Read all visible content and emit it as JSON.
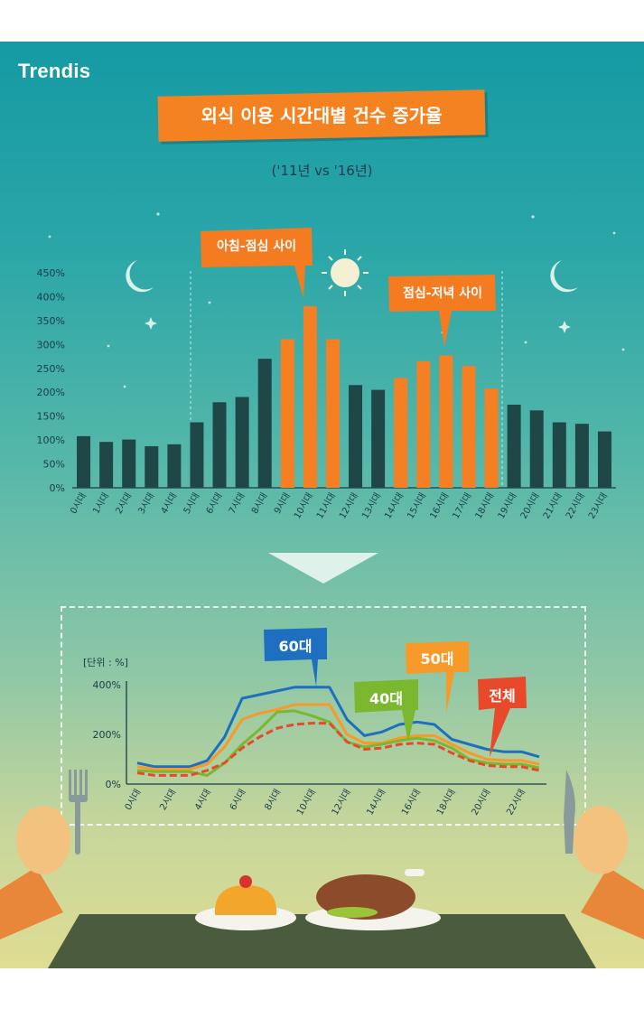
{
  "logo": "Trendis",
  "title": "외식 이용 시간대별 건수 증가율",
  "subtitle": "('11년 vs '16년)",
  "callouts": {
    "morning_lunch": "아침-점심 사이",
    "lunch_dinner": "점심-저녁 사이",
    "age60": "60대",
    "age50": "50대",
    "age40": "40대",
    "total": "전체"
  },
  "colors": {
    "bar_default": "#1f4747",
    "bar_highlight": "#f57f23",
    "callout_orange": "#f47b20",
    "callout_blue": "#1f6fc0",
    "callout_green": "#7bb72f",
    "callout_red": "#e8492b",
    "line_60": "#1f6fc0",
    "line_50": "#f79a2a",
    "line_40": "#7bb72f",
    "line_total": "#e8492b"
  },
  "chart_data": [
    {
      "type": "bar",
      "title": "",
      "ylim": [
        0,
        450
      ],
      "yticks": [
        "0%",
        "50%",
        "100%",
        "150%",
        "200%",
        "250%",
        "300%",
        "350%",
        "400%",
        "450%"
      ],
      "categories": [
        "0시대",
        "1시대",
        "2시대",
        "3시대",
        "4시대",
        "5시대",
        "6시대",
        "7시대",
        "8시대",
        "9시대",
        "10시대",
        "11시대",
        "12시대",
        "13시대",
        "14시대",
        "15시대",
        "16시대",
        "17시대",
        "18시대",
        "19시대",
        "20시대",
        "21시대",
        "22시대",
        "23시대"
      ],
      "values": [
        108,
        96,
        101,
        87,
        91,
        137,
        179,
        190,
        270,
        311,
        380,
        311,
        215,
        205,
        230,
        265,
        277,
        255,
        208,
        174,
        162,
        137,
        134,
        118
      ],
      "highlighted": [
        9,
        10,
        11,
        14,
        15,
        16,
        17,
        18
      ],
      "grid": false
    },
    {
      "type": "line",
      "unit_label": "[단위 : %]",
      "ylim": [
        0,
        400
      ],
      "yticks": [
        "0%",
        "200%",
        "400%"
      ],
      "x": [
        "0시대",
        "1시대",
        "2시대",
        "3시대",
        "4시대",
        "5시대",
        "6시대",
        "7시대",
        "8시대",
        "9시대",
        "10시대",
        "11시대",
        "12시대",
        "13시대",
        "14시대",
        "15시대",
        "16시대",
        "17시대",
        "18시대",
        "19시대",
        "20시대",
        "21시대",
        "22시대",
        "23시대"
      ],
      "x_tick_labels": [
        "0시대",
        "2시대",
        "4시대",
        "6시대",
        "8시대",
        "10시대",
        "12시대",
        "14시대",
        "16시대",
        "18시대",
        "20시대",
        "22시대"
      ],
      "series": [
        {
          "name": "60대",
          "values": [
            85,
            70,
            70,
            70,
            95,
            190,
            345,
            360,
            375,
            390,
            390,
            390,
            260,
            195,
            210,
            240,
            250,
            240,
            180,
            160,
            140,
            130,
            130,
            110
          ]
        },
        {
          "name": "50대",
          "values": [
            70,
            60,
            60,
            60,
            80,
            150,
            260,
            285,
            300,
            320,
            320,
            320,
            200,
            165,
            165,
            185,
            195,
            195,
            160,
            125,
            100,
            95,
            95,
            80
          ]
        },
        {
          "name": "40대",
          "values": [
            55,
            50,
            50,
            50,
            35,
            85,
            160,
            220,
            290,
            295,
            275,
            250,
            170,
            150,
            160,
            175,
            185,
            175,
            145,
            100,
            85,
            80,
            80,
            65
          ]
        },
        {
          "name": "전체",
          "values": [
            45,
            35,
            35,
            35,
            55,
            85,
            145,
            190,
            225,
            240,
            245,
            245,
            170,
            140,
            145,
            160,
            165,
            160,
            125,
            95,
            75,
            70,
            70,
            55
          ]
        }
      ],
      "grid": false
    }
  ]
}
